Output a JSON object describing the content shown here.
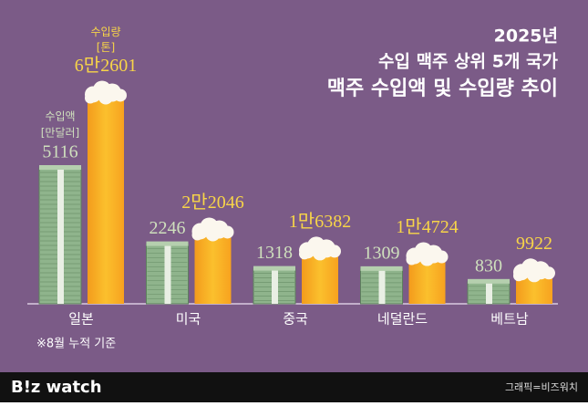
{
  "chart_data": {
    "type": "bar",
    "title_lines": [
      "2025년",
      "수입 맥주 상위 5개 국가",
      "맥주 수입액 및 수입량 추이"
    ],
    "categories": [
      "일본",
      "미국",
      "중국",
      "네덜란드",
      "베트남"
    ],
    "series": [
      {
        "name": "수입액",
        "unit": "[만달러]",
        "color": "#8fb48c",
        "values": [
          5116,
          2246,
          1318,
          1309,
          830
        ]
      },
      {
        "name": "수입량",
        "unit": "[톤]",
        "color": "#f6a623",
        "axis": "y2",
        "values": [
          62601,
          22046,
          16382,
          14724,
          9922
        ],
        "value_labels": [
          "6만2601",
          "2만2046",
          "1만6382",
          "1만4724",
          "9922"
        ]
      }
    ],
    "ylim": [
      0,
      8000
    ],
    "y2lim": [
      0,
      63000
    ],
    "note": "※8월 누적 기준",
    "logo": "B!z watch",
    "credit": "그래픽=비즈워치"
  }
}
